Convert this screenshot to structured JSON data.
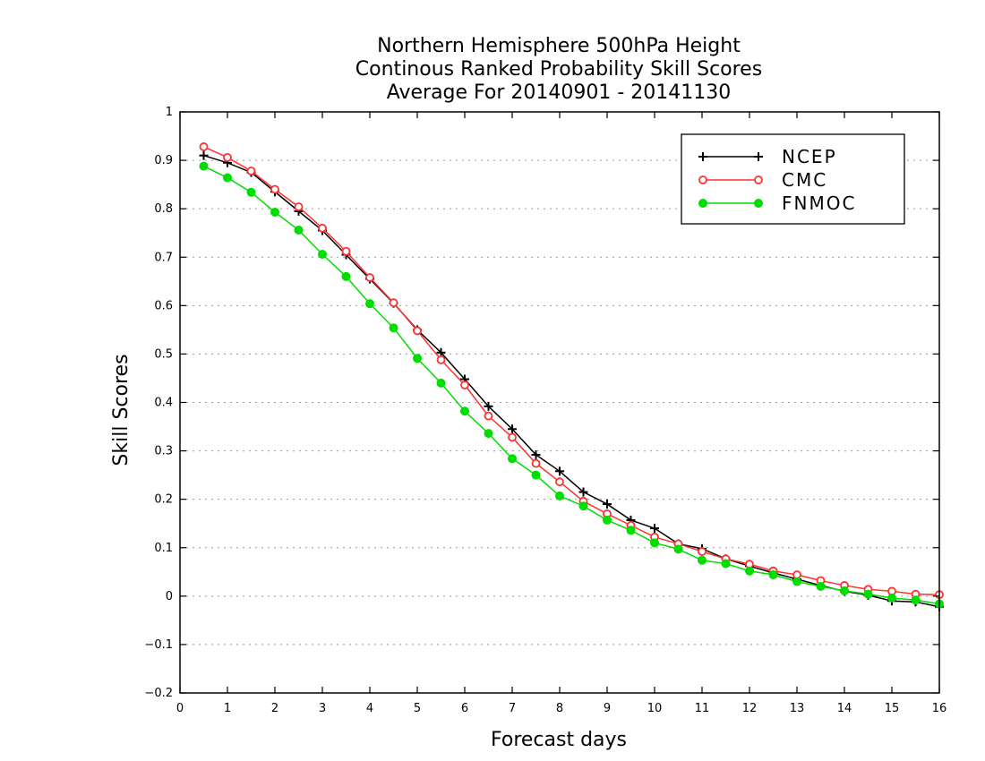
{
  "chart_data": {
    "type": "line",
    "title": [
      "Northern Hemisphere 500hPa Height",
      "Continous Ranked Probability Skill Scores",
      "Average For 20140901 - 20141130"
    ],
    "xlabel": "Forecast days",
    "ylabel": "Skill Scores",
    "xlim": [
      0,
      16
    ],
    "ylim": [
      -0.2,
      1
    ],
    "x_ticks": [
      0,
      1,
      2,
      3,
      4,
      5,
      6,
      7,
      8,
      9,
      10,
      11,
      12,
      13,
      14,
      15,
      16
    ],
    "x_tick_labels": [
      "0",
      "1",
      "2",
      "3",
      "4",
      "5",
      "6",
      "7",
      "8",
      "9",
      "10",
      "11",
      "12",
      "13",
      "14",
      "15",
      "16"
    ],
    "y_ticks": [
      -0.2,
      -0.1,
      0,
      0.1,
      0.2,
      0.3,
      0.4,
      0.5,
      0.6,
      0.7,
      0.8,
      0.9,
      1
    ],
    "y_tick_labels": [
      "−0.2",
      "−0.1",
      "0",
      "0.1",
      "0.2",
      "0.3",
      "0.4",
      "0.5",
      "0.6",
      "0.7",
      "0.8",
      "0.9",
      "1"
    ],
    "grid": true,
    "legend_position": "top-right",
    "x": [
      0.5,
      1,
      1.5,
      2,
      2.5,
      3,
      3.5,
      4,
      4.5,
      5,
      5.5,
      6,
      6.5,
      7,
      7.5,
      8,
      8.5,
      9,
      9.5,
      10,
      10.5,
      11,
      11.5,
      12,
      12.5,
      13,
      13.5,
      14,
      14.5,
      15,
      15.5,
      16
    ],
    "series": [
      {
        "name": "NCEP",
        "color": "#000000",
        "marker": "plus",
        "values": [
          0.91,
          0.895,
          0.875,
          0.835,
          0.795,
          0.755,
          0.705,
          0.655,
          0.605,
          0.55,
          0.503,
          0.448,
          0.392,
          0.345,
          0.292,
          0.258,
          0.215,
          0.19,
          0.157,
          0.14,
          0.108,
          0.098,
          0.077,
          0.062,
          0.048,
          0.035,
          0.022,
          0.01,
          0.002,
          -0.01,
          -0.012,
          -0.022
        ]
      },
      {
        "name": "CMC",
        "color": "#ff3030",
        "marker": "open-circle",
        "values": [
          0.928,
          0.906,
          0.878,
          0.84,
          0.804,
          0.76,
          0.712,
          0.658,
          0.606,
          0.548,
          0.488,
          0.436,
          0.372,
          0.328,
          0.274,
          0.236,
          0.196,
          0.17,
          0.146,
          0.122,
          0.108,
          0.092,
          0.077,
          0.066,
          0.052,
          0.044,
          0.032,
          0.022,
          0.014,
          0.01,
          0.004,
          0.003
        ]
      },
      {
        "name": "FNMOC",
        "color": "#00dd00",
        "marker": "filled-circle",
        "values": [
          0.888,
          0.864,
          0.834,
          0.793,
          0.756,
          0.706,
          0.66,
          0.604,
          0.554,
          0.491,
          0.44,
          0.382,
          0.336,
          0.284,
          0.25,
          0.207,
          0.186,
          0.157,
          0.136,
          0.11,
          0.097,
          0.074,
          0.067,
          0.052,
          0.044,
          0.03,
          0.02,
          0.011,
          0.004,
          -0.004,
          -0.008,
          -0.016
        ]
      }
    ]
  }
}
